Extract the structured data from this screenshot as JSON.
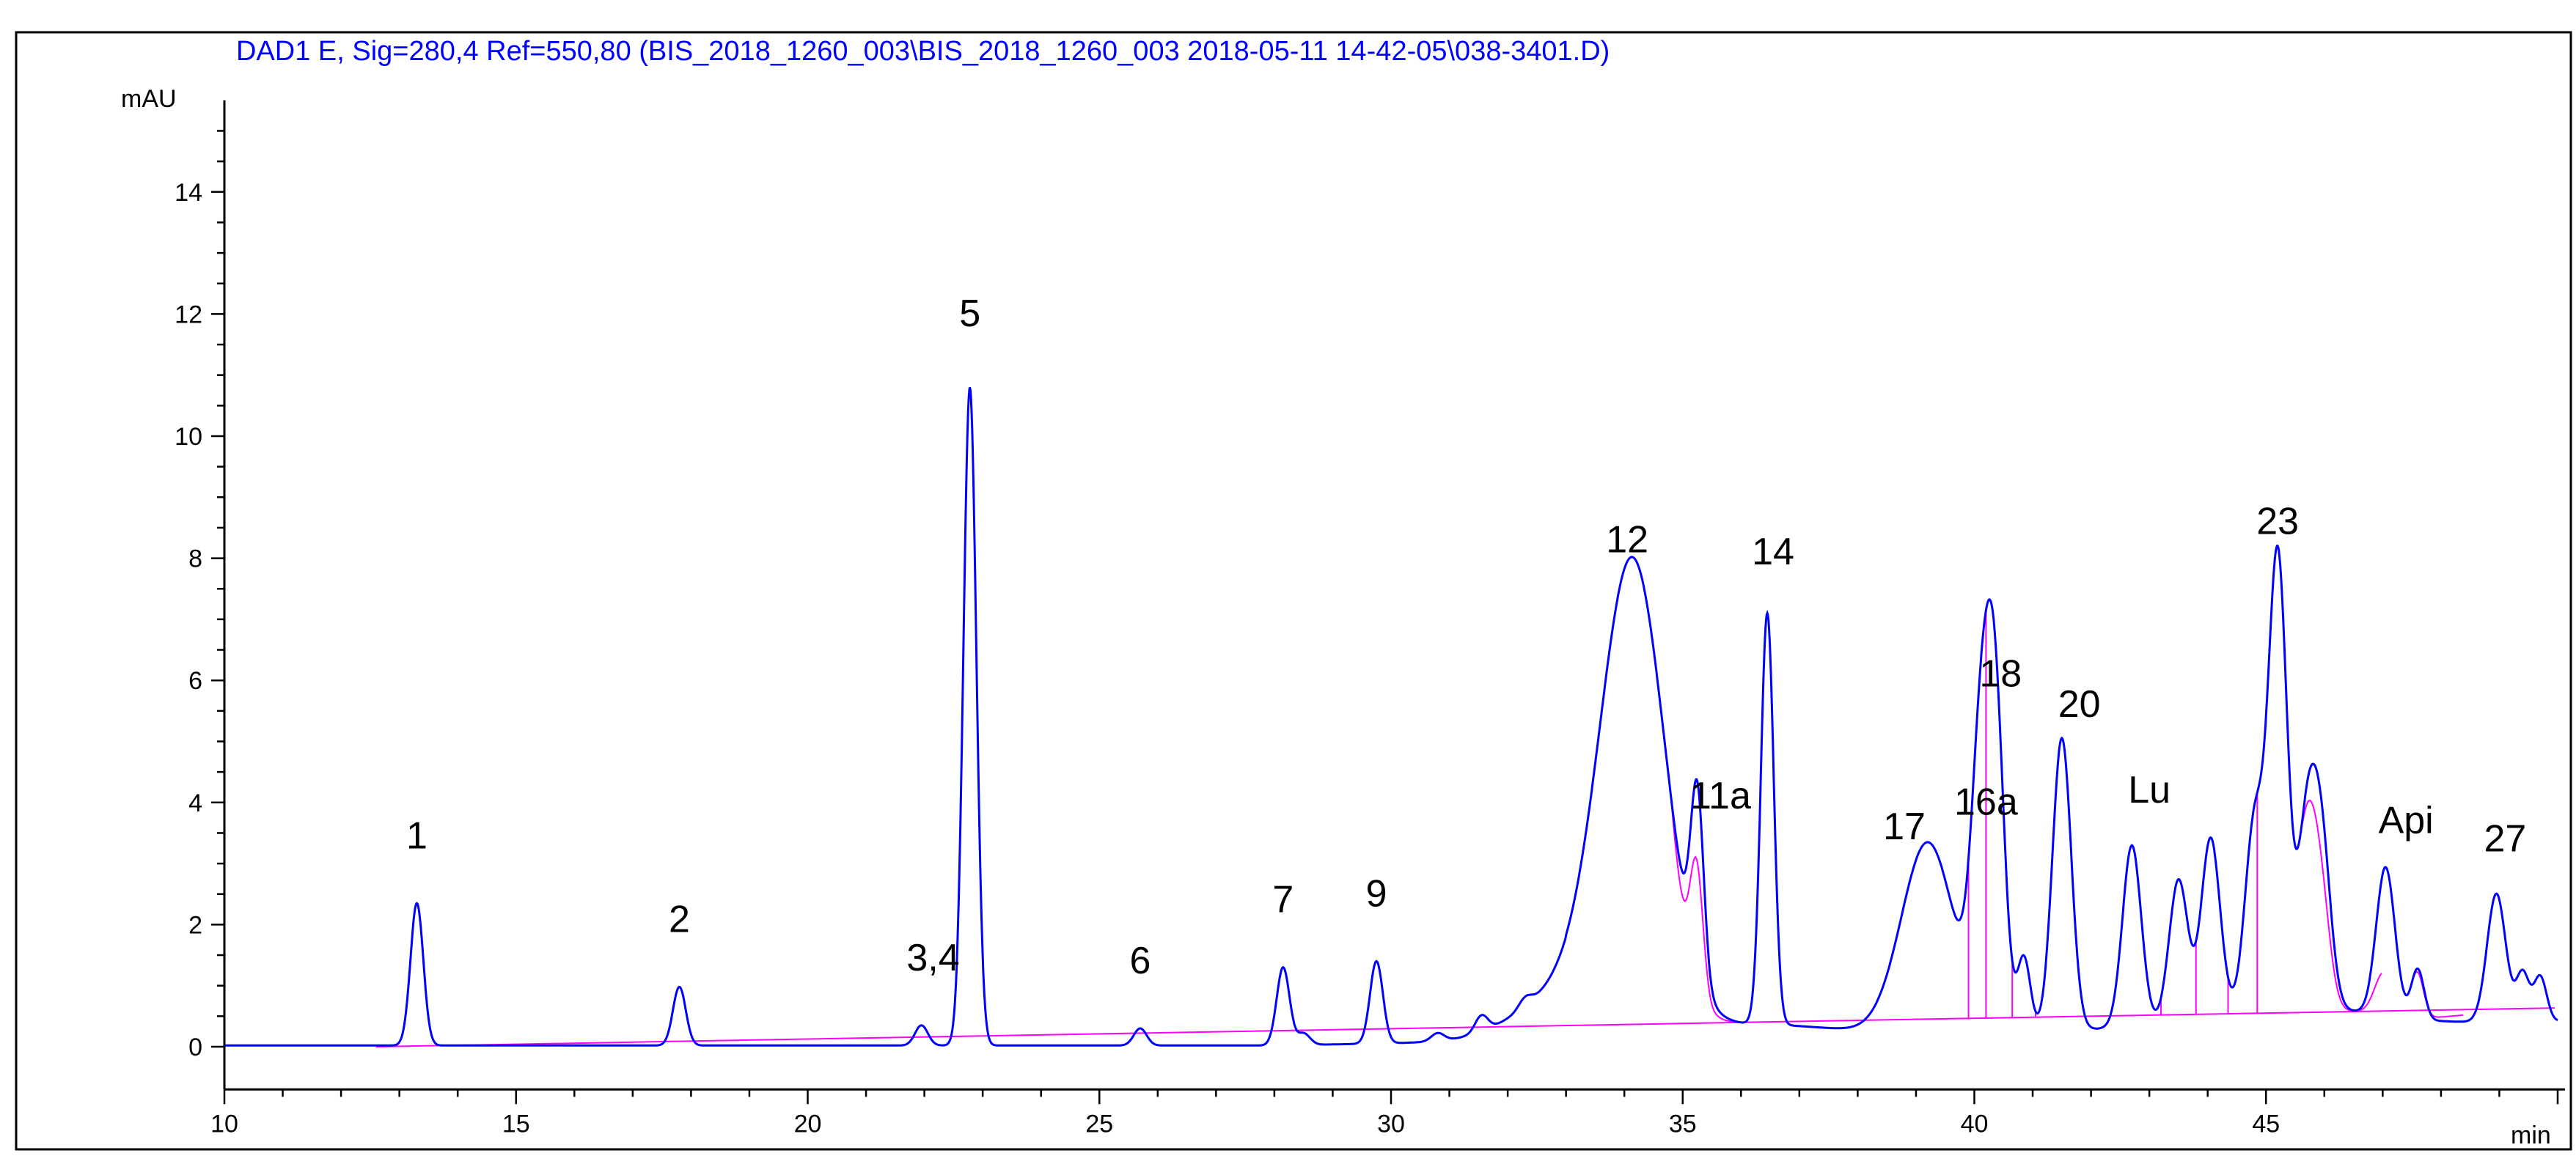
{
  "chart_data": {
    "type": "line",
    "title": "DAD1 E, Sig=280,4 Ref=550,80 (BIS_2018_1260_003\\BIS_2018_1260_003 2018-05-11 14-42-05\\038-3401.D)",
    "xlabel": "min",
    "ylabel": "mAU",
    "xlim": [
      10,
      50
    ],
    "ylim": [
      -0.7,
      15.5
    ],
    "x_ticks": [
      10,
      15,
      20,
      25,
      30,
      35,
      40,
      45
    ],
    "y_ticks": [
      0,
      2,
      4,
      6,
      8,
      10,
      12,
      14
    ],
    "grid": false,
    "colors": {
      "signal": "#0000ff",
      "baseline": "#ff00ff",
      "title": "#0000ff",
      "axes": "#000000"
    },
    "peaks": [
      {
        "label": "1",
        "rt": 13.3,
        "height": 2.35
      },
      {
        "label": "2",
        "rt": 17.8,
        "height": 0.98
      },
      {
        "label": "3,4",
        "rt": 21.95,
        "height": 0.35
      },
      {
        "label": "5",
        "rt": 22.78,
        "height": 10.8
      },
      {
        "label": "6",
        "rt": 25.7,
        "height": 0.3
      },
      {
        "label": "7",
        "rt": 28.15,
        "height": 1.3
      },
      {
        "label": "9",
        "rt": 29.75,
        "height": 1.4
      },
      {
        "label": "12",
        "rt": 34.15,
        "height": 7.5
      },
      {
        "label": "11a",
        "rt": 35.25,
        "height": 3.3
      },
      {
        "label": "14",
        "rt": 36.45,
        "height": 7.1
      },
      {
        "label": "17",
        "rt": 39.2,
        "height": 3.35
      },
      {
        "label": "16a",
        "rt": 40.1,
        "height": 4.2
      },
      {
        "label": "18",
        "rt": 40.35,
        "height": 5.5
      },
      {
        "label": "20",
        "rt": 41.5,
        "height": 5.05
      },
      {
        "label": "Lu",
        "rt": 42.7,
        "height": 3.25
      },
      {
        "label": "23",
        "rt": 45.2,
        "height": 7.7
      },
      {
        "label": "Api",
        "rt": 47.05,
        "height": 2.8
      },
      {
        "label": "27",
        "rt": 48.95,
        "height": 2.5
      }
    ],
    "unlabeled_peaks": [
      {
        "rt": 28.5,
        "height": 0.22
      },
      {
        "rt": 30.8,
        "height": 0.2
      },
      {
        "rt": 31.55,
        "height": 0.35
      },
      {
        "rt": 32.3,
        "height": 0.25
      },
      {
        "rt": 40.85,
        "height": 1.45
      },
      {
        "rt": 43.5,
        "height": 2.6
      },
      {
        "rt": 44.05,
        "height": 3.2
      },
      {
        "rt": 44.8,
        "height": 3.3
      },
      {
        "rt": 45.7,
        "height": 3.15
      },
      {
        "rt": 45.95,
        "height": 2.9
      },
      {
        "rt": 47.6,
        "height": 1.2
      },
      {
        "rt": 49.4,
        "height": 1.2
      },
      {
        "rt": 49.7,
        "height": 1.15
      }
    ]
  }
}
